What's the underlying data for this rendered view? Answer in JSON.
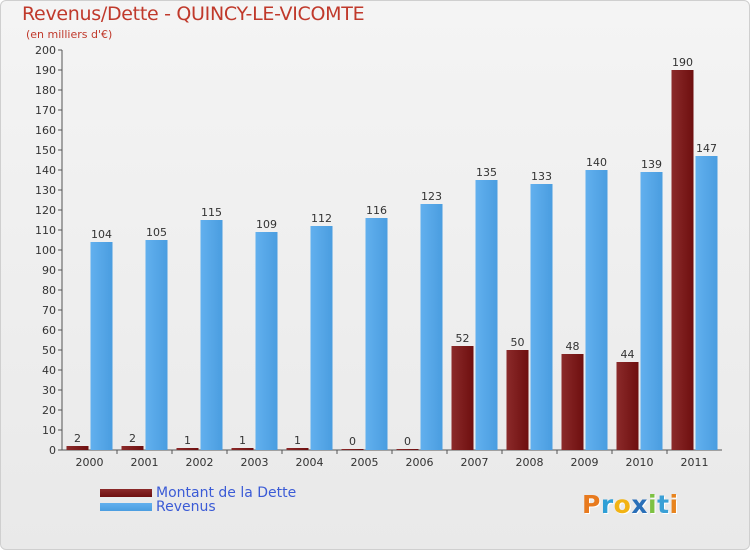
{
  "colors": {
    "debt": "#6e0f0f",
    "debt_light": "#8b2a2a",
    "revenue": "#4a9de0",
    "revenue_light": "#62b0ee",
    "title": "#c0392b",
    "legend_text": "#3b5bd6"
  },
  "logo": {
    "letters": [
      "P",
      "r",
      "o",
      "x",
      "i",
      "t",
      "i"
    ],
    "letter_colors": [
      "#e87a1e",
      "#2f9fd6",
      "#f2b313",
      "#2a6fb8",
      "#7dc142",
      "#3aa0d6",
      "#e8841e"
    ]
  },
  "chart_data": {
    "type": "bar",
    "title": "Revenus/Dette - QUINCY-LE-VICOMTE",
    "subtitle": "(en milliers d'€)",
    "xlabel": "",
    "ylabel": "",
    "ylim": [
      0,
      200
    ],
    "ytick_step": 10,
    "grid": false,
    "legend_position": "bottom-left",
    "categories": [
      "2000",
      "2001",
      "2002",
      "2003",
      "2004",
      "2005",
      "2006",
      "2007",
      "2008",
      "2009",
      "2010",
      "2011"
    ],
    "series": [
      {
        "name": "Montant de la Dette",
        "color_key": "debt",
        "values": [
          2,
          2,
          1,
          1,
          1,
          0,
          0,
          52,
          50,
          48,
          44,
          190
        ]
      },
      {
        "name": "Revenus",
        "color_key": "revenue",
        "values": [
          104,
          105,
          115,
          109,
          112,
          116,
          123,
          135,
          133,
          140,
          139,
          147
        ]
      }
    ]
  }
}
